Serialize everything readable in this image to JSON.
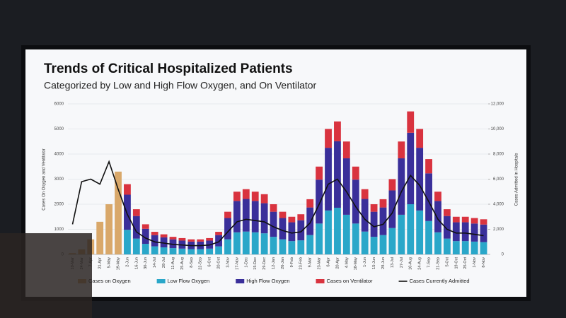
{
  "chart_data": {
    "type": "bar",
    "title": "Trends of Critical Hospitalized Patients",
    "subtitle": "Categorized by Low and High Flow Oxygen, and On Ventilator",
    "y_label": "Cases On Oxygen and Ventilator",
    "y2_label": "Cases Admitted in Hospitals",
    "stacked": true,
    "grid": true,
    "legend": "bottom",
    "categories": [
      "10-Mar",
      "24-Mar",
      "7-Apr",
      "21-Apr",
      "5-May",
      "19-May",
      "2-Jun",
      "16-Jun",
      "30-Jun",
      "14-Jul",
      "28-Jul",
      "11-Aug",
      "25-Aug",
      "8-Sep",
      "22-Sep",
      "6-Oct",
      "20-Oct",
      "3-Nov",
      "17-Nov",
      "1-Dec",
      "15-Dec",
      "29-Dec",
      "12-Jan",
      "26-Jan",
      "9-Feb",
      "23-Feb",
      "9-Mar",
      "23-Mar",
      "6-Apr",
      "20-Apr",
      "4-May",
      "18-May",
      "1-Jun",
      "15-Jun",
      "29-Jun",
      "13-Jul",
      "27-Jul",
      "10-Aug",
      "24-Aug",
      "7-Sep",
      "21-Sep",
      "5-Oct",
      "19-Oct",
      "25-Oct",
      "1-Nov",
      "8-Nov"
    ],
    "series": [
      {
        "name": "Cases on Oxygen",
        "type": "bar",
        "color": "#d9a86a",
        "values": [
          50,
          200,
          600,
          1300,
          2000,
          3300,
          null,
          null,
          null,
          null,
          null,
          null,
          null,
          null,
          null,
          null,
          null,
          null,
          null,
          null,
          null,
          null,
          null,
          null,
          null,
          null,
          null,
          null,
          null,
          null,
          null,
          null,
          null,
          null,
          null,
          null,
          null,
          null,
          null,
          null,
          null,
          null,
          null,
          null,
          null,
          null
        ]
      },
      {
        "name": "Low Flow Oxygen",
        "type": "bar",
        "color": "#2aa7c9",
        "values": [
          null,
          null,
          null,
          null,
          null,
          null,
          980,
          630,
          420,
          320,
          280,
          250,
          230,
          210,
          210,
          230,
          320,
          600,
          880,
          910,
          880,
          840,
          700,
          600,
          530,
          560,
          770,
          1230,
          1750,
          1860,
          1580,
          1230,
          910,
          700,
          770,
          1050,
          1580,
          2000,
          1750,
          1330,
          880,
          630,
          530,
          530,
          510,
          490
        ]
      },
      {
        "name": "High Flow Oxygen",
        "type": "bar",
        "color": "#3a2f9a",
        "values": [
          null,
          null,
          null,
          null,
          null,
          null,
          1400,
          900,
          600,
          450,
          400,
          350,
          320,
          300,
          300,
          320,
          450,
          850,
          1250,
          1300,
          1250,
          1200,
          1000,
          850,
          750,
          800,
          1100,
          1750,
          2500,
          2650,
          2250,
          1750,
          1300,
          1000,
          1100,
          1500,
          2250,
          2850,
          2500,
          1900,
          1250,
          900,
          750,
          750,
          720,
          700
        ]
      },
      {
        "name": "Cases on Ventilator",
        "type": "bar",
        "color": "#d9333f",
        "values": [
          null,
          null,
          null,
          null,
          null,
          null,
          420,
          270,
          180,
          130,
          120,
          100,
          100,
          90,
          90,
          100,
          130,
          250,
          370,
          390,
          370,
          360,
          300,
          250,
          220,
          240,
          330,
          520,
          750,
          790,
          670,
          520,
          390,
          300,
          330,
          450,
          670,
          850,
          750,
          570,
          370,
          270,
          220,
          220,
          220,
          210
        ]
      },
      {
        "name": "Cases Currently Admitted",
        "type": "line",
        "axis": "y2",
        "color": "#111111",
        "values": [
          2400,
          5800,
          6000,
          5600,
          7400,
          5200,
          3200,
          1800,
          1300,
          1000,
          900,
          800,
          750,
          700,
          700,
          750,
          1000,
          1800,
          2600,
          2800,
          2700,
          2600,
          2200,
          1900,
          1700,
          1800,
          2500,
          4000,
          5600,
          6000,
          5000,
          3800,
          2800,
          2200,
          2400,
          3300,
          5000,
          6300,
          5500,
          4200,
          2800,
          2000,
          1700,
          1700,
          1600,
          1500
        ]
      }
    ],
    "ylim": [
      0,
      6000
    ],
    "yticks": [
      0,
      1000,
      2000,
      3000,
      4000,
      5000,
      6000
    ],
    "y2lim": [
      0,
      12000
    ],
    "y2ticks": [
      0,
      {
        "value": 2000,
        "label": "2,000"
      },
      {
        "value": 4000,
        "label": "4,000"
      },
      {
        "value": 6000,
        "label": "6,000"
      },
      {
        "value": 8000,
        "label": "8,000"
      },
      {
        "value": 10000,
        "label": "10,000"
      },
      {
        "value": 12000,
        "label": "12,000"
      }
    ]
  }
}
